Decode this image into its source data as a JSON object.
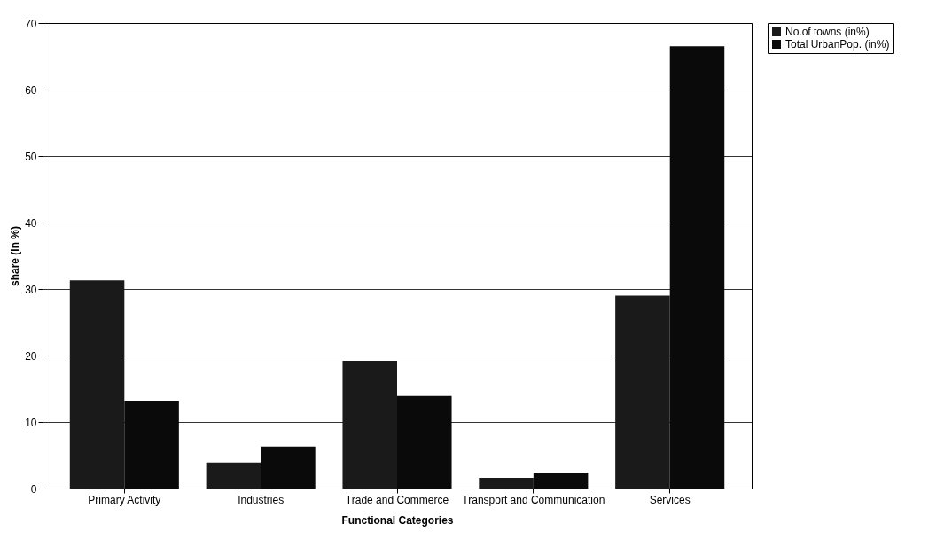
{
  "chart_data": {
    "type": "bar",
    "xlabel": "Functional Categories",
    "ylabel": "share (in %)",
    "categories": [
      "Primary Activity",
      "Industries",
      "Trade and Commerce",
      "Transport and Communication",
      "Services"
    ],
    "series": [
      {
        "name": "No.of towns (in%)",
        "color": "#1a1a1a",
        "values": [
          31.3,
          3.9,
          19.2,
          1.6,
          29.0
        ]
      },
      {
        "name": "Total UrbanPop. (in%)",
        "color": "#0a0a0a",
        "values": [
          13.2,
          6.3,
          13.9,
          2.4,
          66.5
        ]
      }
    ],
    "ylim": [
      0,
      70
    ],
    "yticks": [
      0,
      10,
      20,
      30,
      40,
      50,
      60,
      70
    ],
    "grid": "y",
    "legend": "right"
  }
}
